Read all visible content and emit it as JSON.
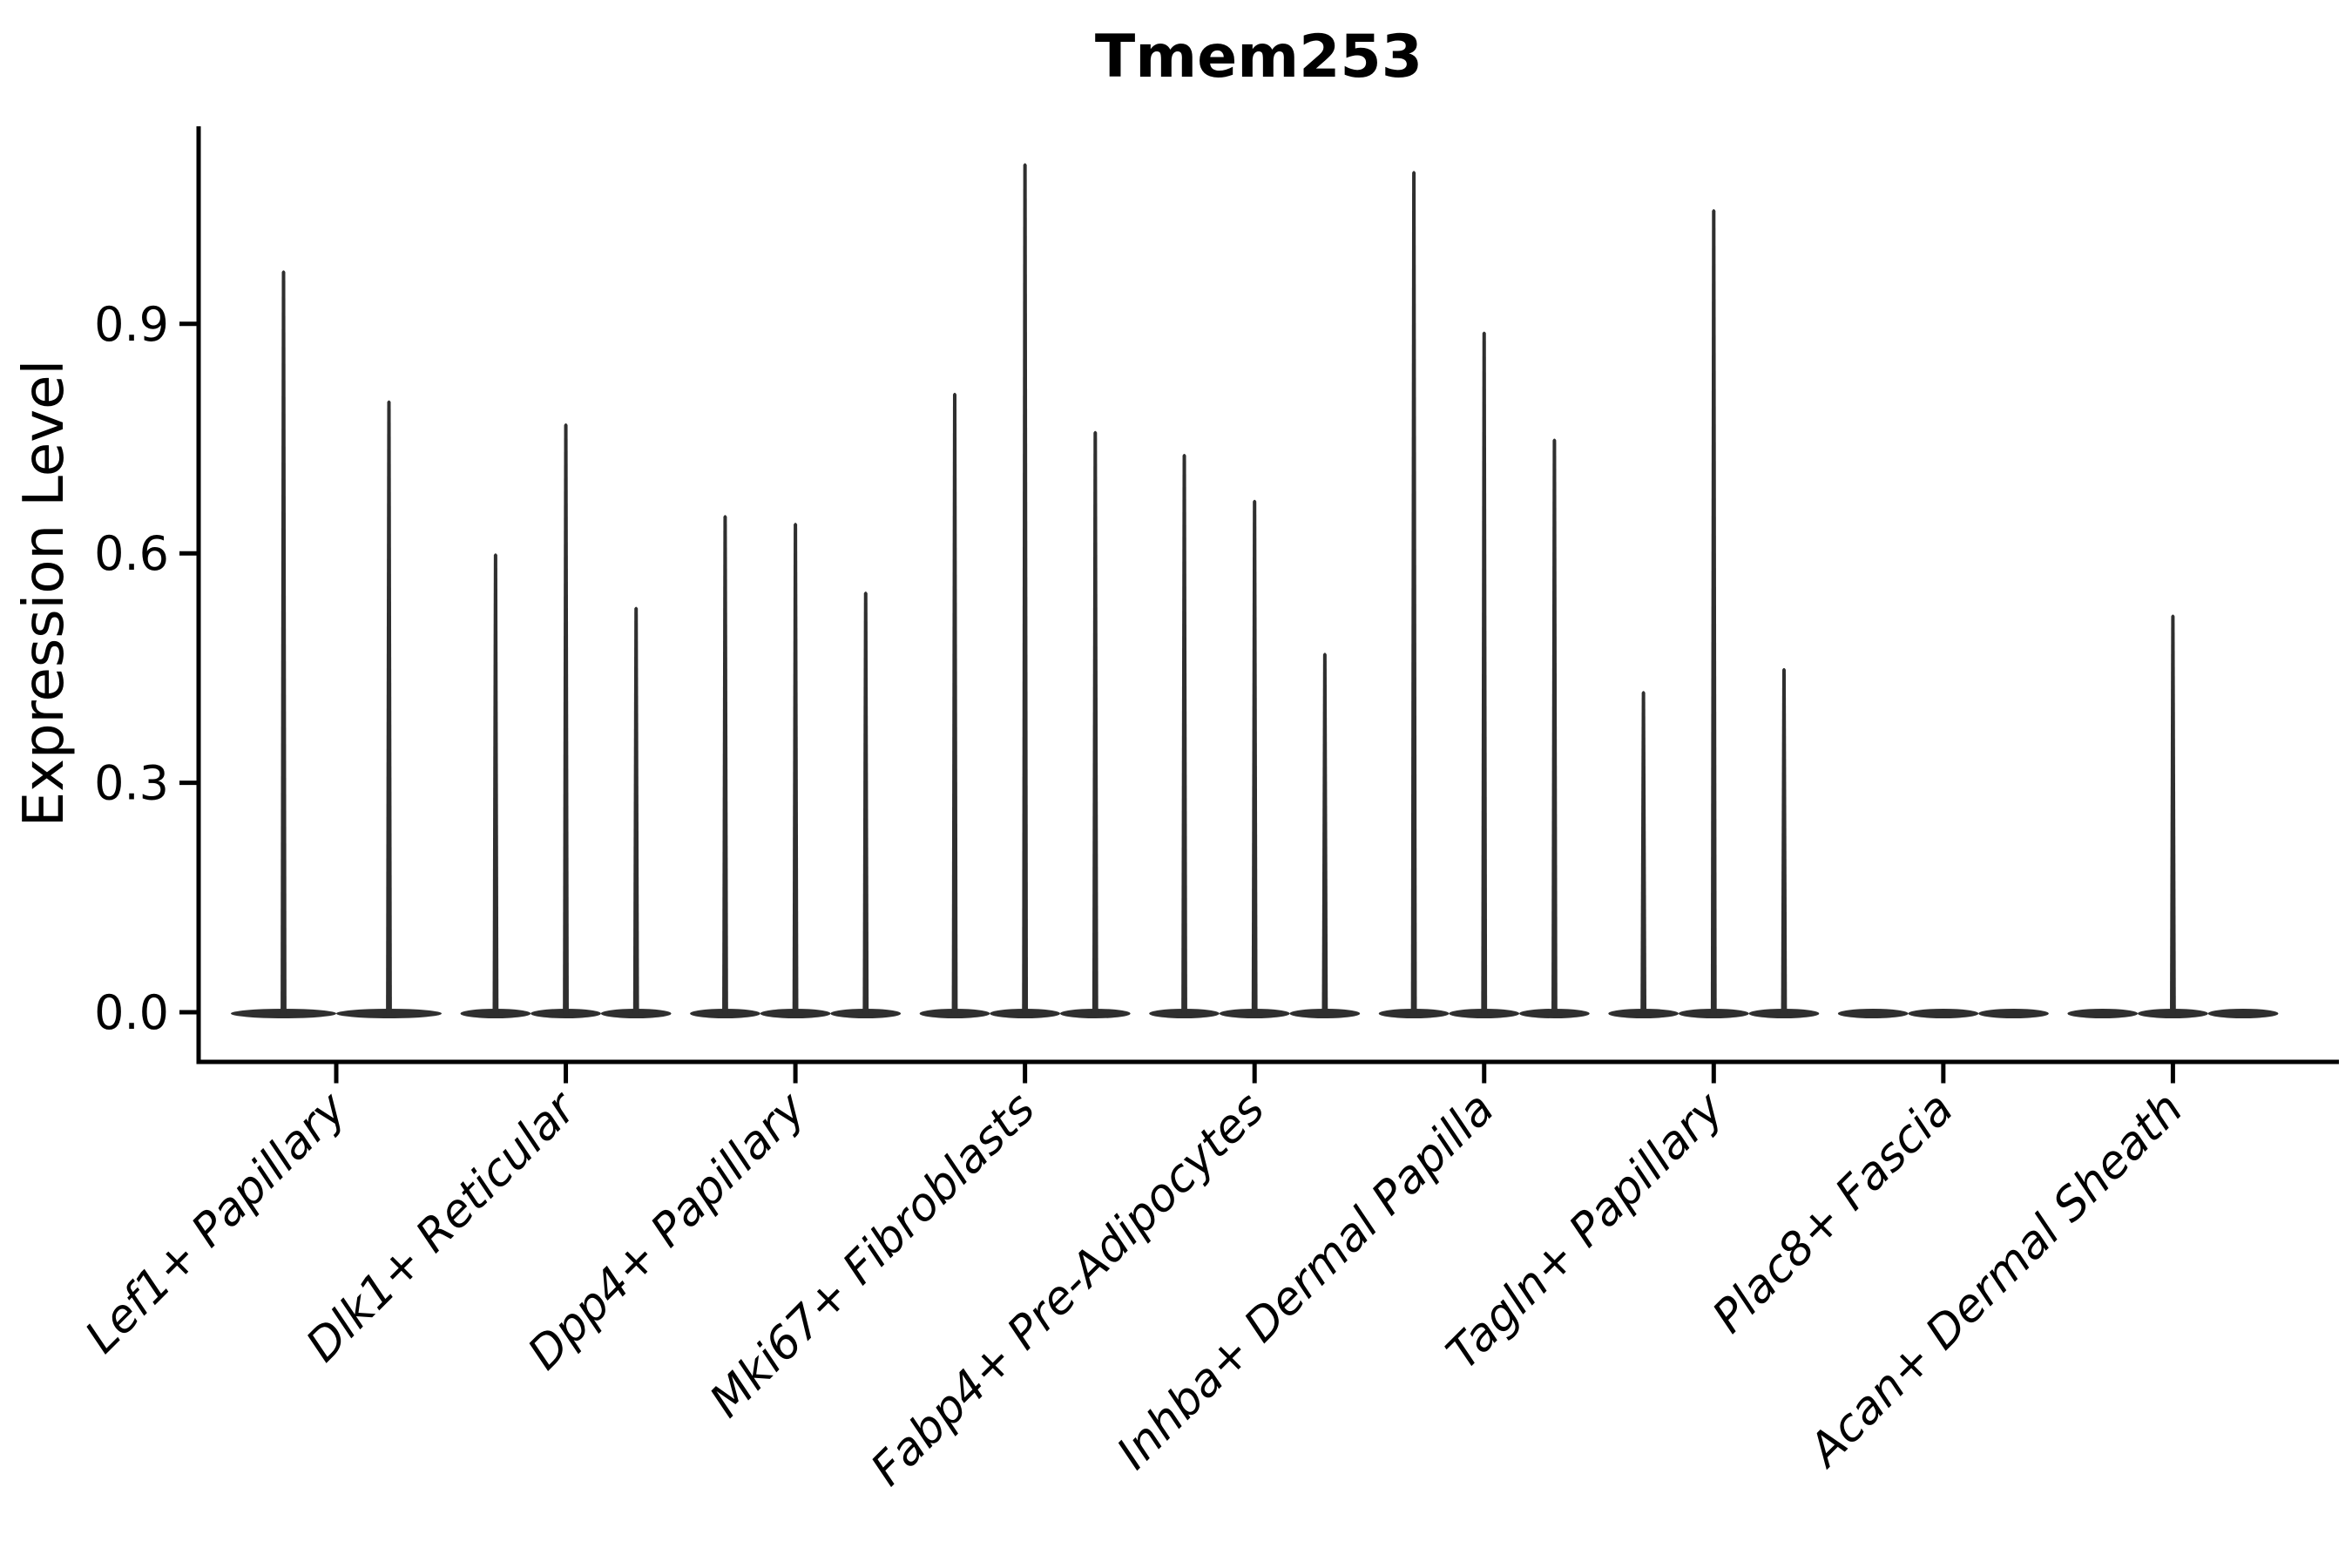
{
  "title": "Tmem253",
  "y_axis": {
    "label": "Expression Level",
    "tick_labels": [
      "0.0",
      "0.3",
      "0.6",
      "0.9"
    ]
  },
  "x_axis": {
    "label": "",
    "categories": [
      "Lef1+ Papillary",
      "Dlk1+ Reticular",
      "Dpp4+ Papillary",
      "Mki67+ Fibroblasts",
      "Fabp4+ Pre-Adipocytes",
      "Inhba+ Dermal Papilla",
      "Tagln+ Papillary",
      "Plac8+ Fascia",
      "Acan+ Dermal Sheath"
    ]
  },
  "chart_data": {
    "type": "violin",
    "title": "Tmem253",
    "xlabel": "",
    "ylabel": "Expression Level",
    "ylim": [
      0,
      1.16
    ],
    "yticks": [
      0.0,
      0.3,
      0.6,
      0.9
    ],
    "ytick_labels": [
      "0.0",
      "0.3",
      "0.6",
      "0.9"
    ],
    "grid": false,
    "legend": "none",
    "description": "Needle-like violins: density mass sits at 0 (flat lens on baseline) with a thin spike rising to each violin's maximum expression value.",
    "categories": [
      "Lef1+ Papillary",
      "Dlk1+ Reticular",
      "Dpp4+ Papillary",
      "Mki67+ Fibroblasts",
      "Fabp4+ Pre-Adipocytes",
      "Inhba+ Dermal Papilla",
      "Tagln+ Papillary",
      "Plac8+ Fascia",
      "Acan+ Dermal Sheath"
    ],
    "series": [
      {
        "category": "Lef1+ Papillary",
        "violin_maxima": [
          0.97,
          0.8
        ]
      },
      {
        "category": "Dlk1+ Reticular",
        "violin_maxima": [
          0.6,
          0.77,
          0.53
        ]
      },
      {
        "category": "Dpp4+ Papillary",
        "violin_maxima": [
          0.65,
          0.64,
          0.55
        ]
      },
      {
        "category": "Mki67+ Fibroblasts",
        "violin_maxima": [
          0.81,
          1.11,
          0.76
        ]
      },
      {
        "category": "Fabp4+ Pre-Adipocytes",
        "violin_maxima": [
          0.73,
          0.67,
          0.47
        ]
      },
      {
        "category": "Inhba+ Dermal Papilla",
        "violin_maxima": [
          1.1,
          0.89,
          0.75
        ]
      },
      {
        "category": "Tagln+ Papillary",
        "violin_maxima": [
          0.42,
          1.05,
          0.45
        ]
      },
      {
        "category": "Plac8+ Fascia",
        "violin_maxima": [
          0.0,
          0.0,
          0.0
        ]
      },
      {
        "category": "Acan+ Dermal Sheath",
        "violin_maxima": [
          0.0,
          0.52,
          0.0
        ]
      }
    ],
    "colors": {
      "violin": "#2f2f2f",
      "axis": "#000000",
      "text": "#000000",
      "background": "#ffffff"
    }
  }
}
